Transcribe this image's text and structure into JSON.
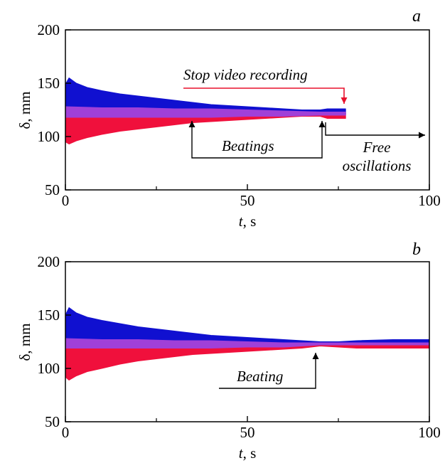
{
  "chart_data": [
    {
      "type": "area",
      "panel_label": "a",
      "xlabel_var": "t",
      "xlabel_unit": ", s",
      "ylabel": "δ, mm",
      "xlim": [
        0,
        100
      ],
      "ylim": [
        50,
        200
      ],
      "xticks": [
        0,
        50,
        100
      ],
      "yticks": [
        50,
        100,
        150,
        200
      ],
      "grid": false,
      "x_end": 77,
      "series": [
        {
          "color": "#1010d0",
          "x": [
            0,
            1,
            3,
            6,
            10,
            15,
            20,
            25,
            30,
            35,
            40,
            45,
            50,
            55,
            60,
            65,
            70,
            72,
            77
          ],
          "upper": [
            149,
            155,
            150,
            146,
            143,
            140,
            138,
            136,
            134,
            132,
            130,
            129,
            128,
            127,
            126,
            125,
            125,
            126,
            126
          ],
          "lower": [
            120,
            120,
            121,
            121,
            121,
            121,
            121,
            121,
            121,
            121,
            121,
            121,
            121,
            121,
            121,
            121,
            121,
            121,
            121
          ]
        },
        {
          "color": "#f0103c",
          "x": [
            0,
            1,
            3,
            6,
            10,
            15,
            20,
            25,
            30,
            35,
            40,
            45,
            50,
            55,
            60,
            65,
            70,
            72,
            77
          ],
          "upper": [
            123,
            123,
            123,
            123,
            123,
            123,
            123,
            123,
            122,
            122,
            122,
            122,
            122,
            122,
            122,
            122,
            122,
            122,
            122
          ],
          "lower": [
            95,
            93,
            96,
            99,
            102,
            105,
            107,
            109,
            111,
            113,
            114,
            115,
            116,
            117,
            118,
            119,
            119,
            117,
            117
          ]
        },
        {
          "color": "#a040d8",
          "x": [
            0,
            10,
            20,
            30,
            40,
            50,
            60,
            70,
            72,
            77
          ],
          "upper": [
            128,
            127,
            127,
            126,
            126,
            125,
            124,
            123,
            123,
            123
          ],
          "lower": [
            118,
            118,
            118,
            118,
            118,
            119,
            119,
            120,
            120,
            120
          ]
        }
      ],
      "annotations": [
        {
          "id": "stop",
          "text": "Stop video recording"
        },
        {
          "id": "beat",
          "text": "Beatings"
        },
        {
          "id": "free",
          "text_lines": [
            "Free",
            "oscillations"
          ]
        }
      ]
    },
    {
      "type": "area",
      "panel_label": "b",
      "xlabel_var": "t",
      "xlabel_unit": ", s",
      "ylabel": "δ, mm",
      "xlim": [
        0,
        100
      ],
      "ylim": [
        50,
        200
      ],
      "xticks": [
        0,
        50,
        100
      ],
      "yticks": [
        50,
        100,
        150,
        200
      ],
      "grid": false,
      "x_end": 100,
      "series": [
        {
          "color": "#1010d0",
          "x": [
            0,
            1,
            3,
            6,
            10,
            15,
            20,
            25,
            30,
            35,
            40,
            45,
            50,
            55,
            60,
            65,
            70,
            75,
            80,
            90,
            100
          ],
          "upper": [
            150,
            157,
            152,
            148,
            145,
            142,
            139,
            137,
            135,
            133,
            131,
            130,
            129,
            128,
            127,
            126,
            125,
            125,
            126,
            127,
            127
          ],
          "lower": [
            121,
            121,
            121,
            121,
            121,
            121,
            121,
            121,
            121,
            121,
            121,
            121,
            121,
            121,
            121,
            121,
            121,
            121,
            121,
            121,
            121
          ]
        },
        {
          "color": "#f0103c",
          "x": [
            0,
            1,
            3,
            6,
            10,
            15,
            20,
            25,
            30,
            35,
            40,
            45,
            50,
            55,
            60,
            65,
            70,
            75,
            80,
            90,
            100
          ],
          "upper": [
            124,
            124,
            124,
            124,
            124,
            124,
            124,
            124,
            124,
            123,
            123,
            123,
            123,
            123,
            123,
            123,
            123,
            123,
            123,
            123,
            123
          ],
          "lower": [
            92,
            89,
            93,
            97,
            100,
            104,
            107,
            109,
            111,
            113,
            114,
            115,
            116,
            117,
            118,
            119,
            121,
            120,
            119,
            119,
            119
          ]
        },
        {
          "color": "#a040d8",
          "x": [
            0,
            10,
            20,
            30,
            40,
            50,
            60,
            70,
            80,
            90,
            100
          ],
          "upper": [
            128,
            127,
            127,
            126,
            126,
            125,
            124,
            124,
            124,
            124,
            124
          ],
          "lower": [
            119,
            119,
            119,
            119,
            119,
            120,
            120,
            122,
            122,
            122,
            122
          ]
        }
      ],
      "annotations": [
        {
          "id": "beat",
          "text": "Beating"
        }
      ]
    }
  ]
}
